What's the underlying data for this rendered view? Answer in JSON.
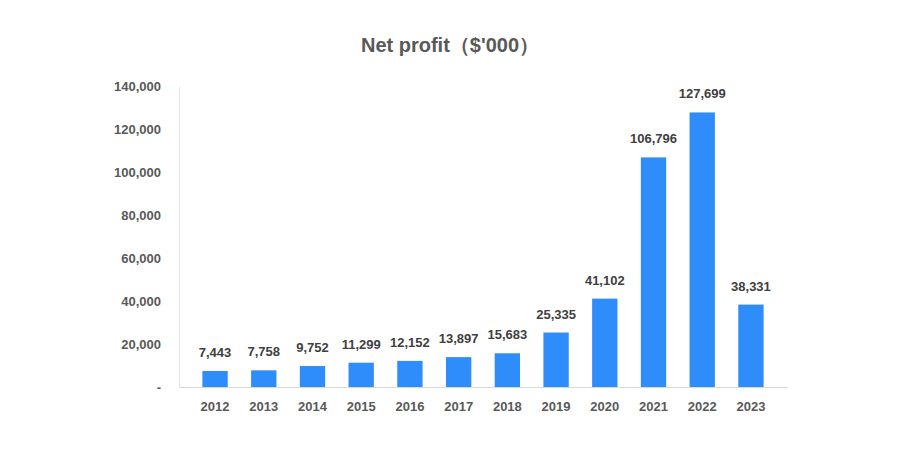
{
  "chart_data": {
    "type": "bar",
    "title": "Net profit（$'000）",
    "categories": [
      "2012",
      "2013",
      "2014",
      "2015",
      "2016",
      "2017",
      "2018",
      "2019",
      "2020",
      "2021",
      "2022",
      "2023"
    ],
    "values": [
      7443,
      7758,
      9752,
      11299,
      12152,
      13897,
      15683,
      25335,
      41102,
      106796,
      127699,
      38331
    ],
    "value_labels": [
      "7,443",
      "7,758",
      "9,752",
      "11,299",
      "12,152",
      "13,897",
      "15,683",
      "25,335",
      "41,102",
      "106,796",
      "127,699",
      "38,331"
    ],
    "color": "#2f8cfb",
    "ylim": [
      0,
      140000
    ],
    "yticks": [
      {
        "value": 0,
        "label": "-"
      },
      {
        "value": 20000,
        "label": "20,000"
      },
      {
        "value": 40000,
        "label": "40,000"
      },
      {
        "value": 60000,
        "label": "60,000"
      },
      {
        "value": 80000,
        "label": "80,000"
      },
      {
        "value": 100000,
        "label": "100,000"
      },
      {
        "value": 120000,
        "label": "120,000"
      },
      {
        "value": 140000,
        "label": "140,000"
      }
    ],
    "grid": false,
    "data_labels": true
  }
}
